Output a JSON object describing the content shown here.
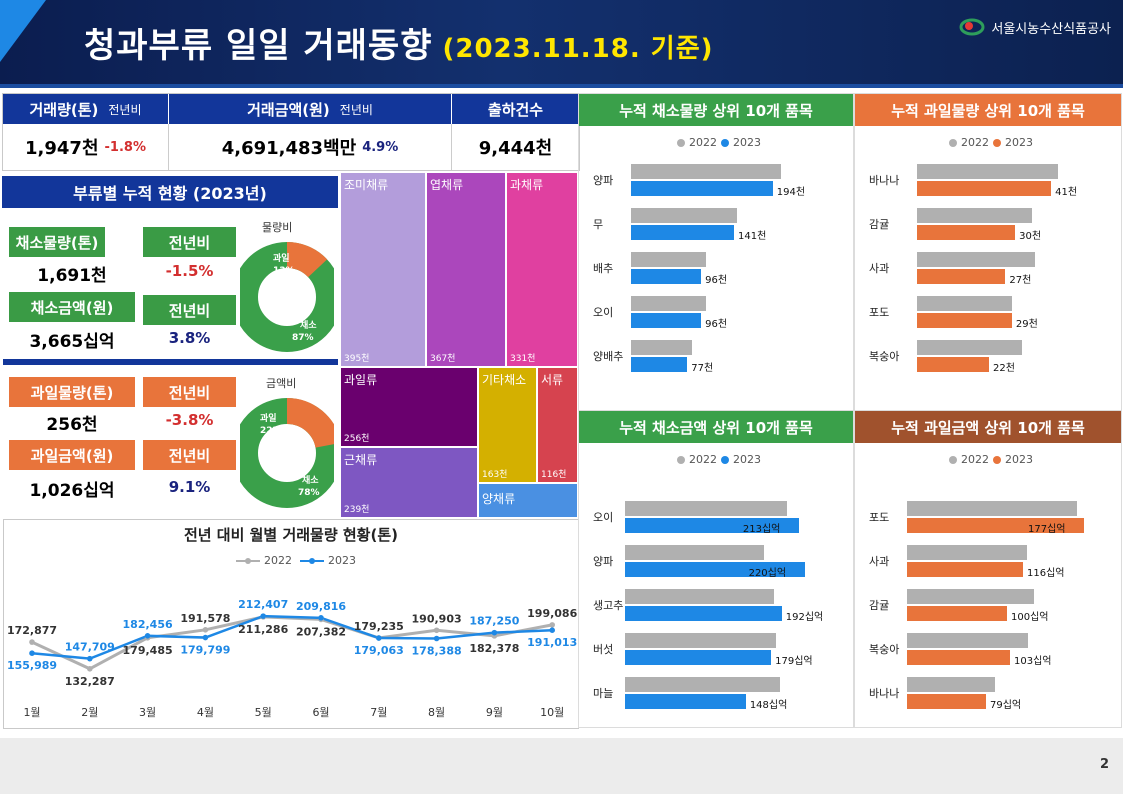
{
  "header": {
    "title": "청과부류 일일 거래동향",
    "date": "(2023.11.18. 기준)",
    "org": "서울시농수산식품공사"
  },
  "kpi": {
    "volume": {
      "label": "거래량(톤)",
      "yoy_label": "전년비",
      "value": "1,947천",
      "yoy": "-1.8%"
    },
    "amount": {
      "label": "거래금액(원)",
      "yoy_label": "전년비",
      "value": "4,691,483백만",
      "yoy": "4.9%"
    },
    "shipments": {
      "label": "출하건수",
      "value": "9,444천"
    }
  },
  "category": {
    "title": "부류별 누적 현황 (2023년)",
    "veg_vol_label": "채소물량(톤)",
    "veg_vol_value": "1,691천",
    "yoy_label": "전년비",
    "veg_vol_yoy": "-1.5%",
    "veg_amt_label": "채소금액(원)",
    "veg_amt_value": "3,665십억",
    "veg_amt_yoy": "3.8%",
    "fruit_vol_label": "과일물량(톤)",
    "fruit_vol_value": "256천",
    "fruit_vol_yoy": "-3.8%",
    "fruit_amt_label": "과일금액(원)",
    "fruit_amt_value": "1,026십억",
    "fruit_amt_yoy": "9.1%",
    "donut1": {
      "title": "물량비",
      "fruit_label": "과일",
      "fruit_pct": "13%",
      "veg_label": "채소",
      "veg_pct": "87%",
      "fruit_share": 13
    },
    "donut2": {
      "title": "금액비",
      "fruit_label": "과일",
      "fruit_pct": "22%",
      "veg_label": "채소",
      "veg_pct": "78%",
      "fruit_share": 22
    }
  },
  "treemap": [
    {
      "name": "조미채류",
      "value": "395천",
      "color": "#b39ddb"
    },
    {
      "name": "엽채류",
      "value": "367천",
      "color": "#ab47bc"
    },
    {
      "name": "과채류",
      "value": "331천",
      "color": "#e040a0"
    },
    {
      "name": "과일류",
      "value": "256천",
      "color": "#6a006e"
    },
    {
      "name": "근채류",
      "value": "239천",
      "color": "#7e57c2"
    },
    {
      "name": "기타채소",
      "value": "163천",
      "color": "#d4b000"
    },
    {
      "name": "서류",
      "value": "116천",
      "color": "#d6434f"
    },
    {
      "name": "양채류",
      "value": "",
      "color": "#4a90e2"
    }
  ],
  "chart_data": [
    {
      "type": "line",
      "title": "전년 대비 월별 거래물량 현황(톤)",
      "categories": [
        "1월",
        "2월",
        "3월",
        "4월",
        "5월",
        "6월",
        "7월",
        "8월",
        "9월",
        "10월"
      ],
      "series": [
        {
          "name": "2022",
          "color": "#b0b0b0",
          "values": [
            172877,
            132287,
            179485,
            191578,
            211286,
            207382,
            179235,
            190903,
            182378,
            199086
          ],
          "labels": [
            "172,877",
            "132,287",
            "179,485",
            "191,578",
            "211,286",
            "207,382",
            "179,235",
            "190,903",
            "182,378",
            "199,086"
          ]
        },
        {
          "name": "2023",
          "color": "#1e88e5",
          "values": [
            155989,
            147709,
            182456,
            179799,
            212407,
            209816,
            179063,
            178388,
            187250,
            191013
          ],
          "labels": [
            "155,989",
            "147,709",
            "182,456",
            "179,799",
            "212,407",
            "209,816",
            "179,063",
            "178,388",
            "187,250",
            "191,013"
          ]
        }
      ],
      "ylim": [
        100000,
        240000
      ]
    },
    {
      "type": "bar",
      "title": "누적 채소물량 상위 10개 품목",
      "legend": [
        "2022",
        "2023"
      ],
      "color2023": "#1e88e5",
      "categories": [
        "양파",
        "무",
        "배추",
        "오이",
        "양배추"
      ],
      "series": [
        {
          "name": "2022",
          "values": [
            205,
            145,
            103,
            102,
            84
          ]
        },
        {
          "name": "2023",
          "values": [
            194,
            141,
            96,
            96,
            77
          ]
        }
      ],
      "labels": [
        "194천",
        "141천",
        "96천",
        "96천",
        "77천"
      ],
      "xmax": 260
    },
    {
      "type": "bar",
      "title": "누적 과일물량 상위 10개 품목",
      "legend": [
        "2022",
        "2023"
      ],
      "color2023": "#e8743b",
      "categories": [
        "바나나",
        "감귤",
        "사과",
        "포도",
        "복숭아"
      ],
      "series": [
        {
          "name": "2022",
          "values": [
            43,
            35,
            36,
            29,
            32
          ]
        },
        {
          "name": "2023",
          "values": [
            41,
            30,
            27,
            29,
            22
          ]
        }
      ],
      "labels": [
        "41천",
        "30천",
        "27천",
        "29천",
        "22천"
      ],
      "xmax": 55
    },
    {
      "type": "bar",
      "title": "누적 채소금액 상위 10개 품목",
      "legend": [
        "2022",
        "2023"
      ],
      "color2023": "#1e88e5",
      "categories": [
        "오이",
        "양파",
        "생고추",
        "버섯",
        "마늘"
      ],
      "series": [
        {
          "name": "2022",
          "values": [
            198,
            170,
            183,
            185,
            190
          ]
        },
        {
          "name": "2023",
          "values": [
            213,
            220,
            192,
            179,
            148
          ]
        }
      ],
      "labels": [
        "213십억",
        "220십억",
        "192십억",
        "179십억",
        "148십억"
      ],
      "xmax": 245
    },
    {
      "type": "bar",
      "title": "누적 과일금액 상위 10개 품목",
      "legend": [
        "2022",
        "2023"
      ],
      "color2023": "#e8743b",
      "categories": [
        "포도",
        "사과",
        "감귤",
        "복숭아",
        "바나나"
      ],
      "series": [
        {
          "name": "2022",
          "values": [
            170,
            120,
            127,
            121,
            88
          ]
        },
        {
          "name": "2023",
          "values": [
            177,
            116,
            100,
            103,
            79
          ]
        }
      ],
      "labels": [
        "177십억",
        "116십억",
        "100십억",
        "103십억",
        "79십억"
      ],
      "xmax": 200
    }
  ],
  "page_number": "2"
}
